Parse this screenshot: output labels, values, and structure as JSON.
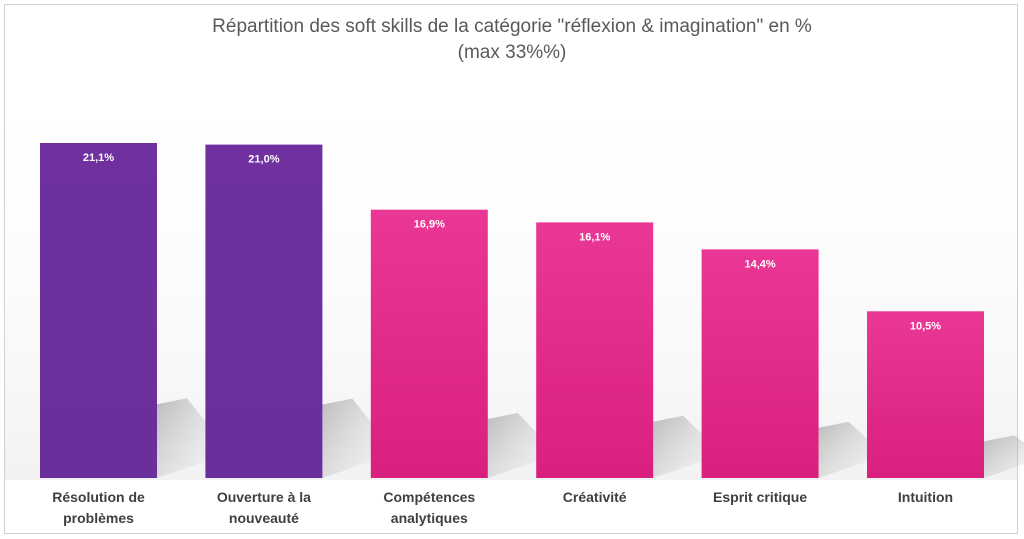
{
  "chart_data": {
    "type": "bar",
    "title": "Répartition des soft skills de la catégorie \"réflexion & imagination\" en %",
    "subtitle": "(max 33%%)",
    "categories": [
      [
        "Résolution de",
        "problèmes"
      ],
      [
        "Ouverture à la",
        "nouveauté"
      ],
      [
        "Compétences",
        "analytiques"
      ],
      [
        "Créativité"
      ],
      [
        "Esprit critique"
      ],
      [
        "Intuition"
      ]
    ],
    "values": [
      21.1,
      21.0,
      16.9,
      16.1,
      14.4,
      10.5
    ],
    "value_labels": [
      "21,1%",
      "21,0%",
      "16,9%",
      "16,1%",
      "14,4%",
      "10,5%"
    ],
    "bar_colors": [
      "#7030a0",
      "#7030a0",
      "#e8318f",
      "#e8318f",
      "#e8318f",
      "#e8318f"
    ],
    "ylim": [
      0,
      33
    ],
    "grid": false,
    "legend": "none"
  }
}
